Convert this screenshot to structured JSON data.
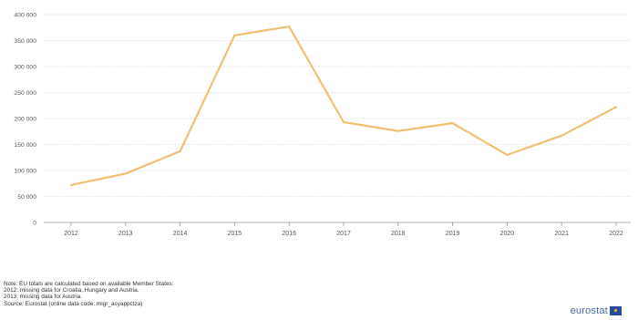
{
  "chart_data": {
    "type": "line",
    "title": "",
    "xlabel": "",
    "ylabel": "",
    "x": [
      "2012",
      "2013",
      "2014",
      "2015",
      "2016",
      "2017",
      "2018",
      "2019",
      "2020",
      "2021",
      "2022"
    ],
    "series": [
      {
        "values": [
          72000,
          94000,
          137000,
          360000,
          377000,
          193000,
          176000,
          191000,
          130000,
          167000,
          222000
        ]
      }
    ],
    "ylim": [
      0,
      400000
    ],
    "yticks": [
      0,
      50000,
      100000,
      150000,
      200000,
      250000,
      300000,
      350000,
      400000
    ],
    "ytick_labels": [
      "0",
      "50 000",
      "100 000",
      "150 000",
      "200 000",
      "250 000",
      "300 000",
      "350 000",
      "400 000"
    ],
    "grid": true,
    "line_color": "#f0c070"
  },
  "notes": {
    "line1": "Note: EU totals are calculated based on available Member States:",
    "line2": "2012: missing data for Croatia, Hungary and Austria.",
    "line3": "2013: missing data for Austria.",
    "source_label": "Source:",
    "source_text": " Eurostat (online data code: migr_asyappctza)"
  },
  "logo": {
    "text": "eurostat"
  }
}
